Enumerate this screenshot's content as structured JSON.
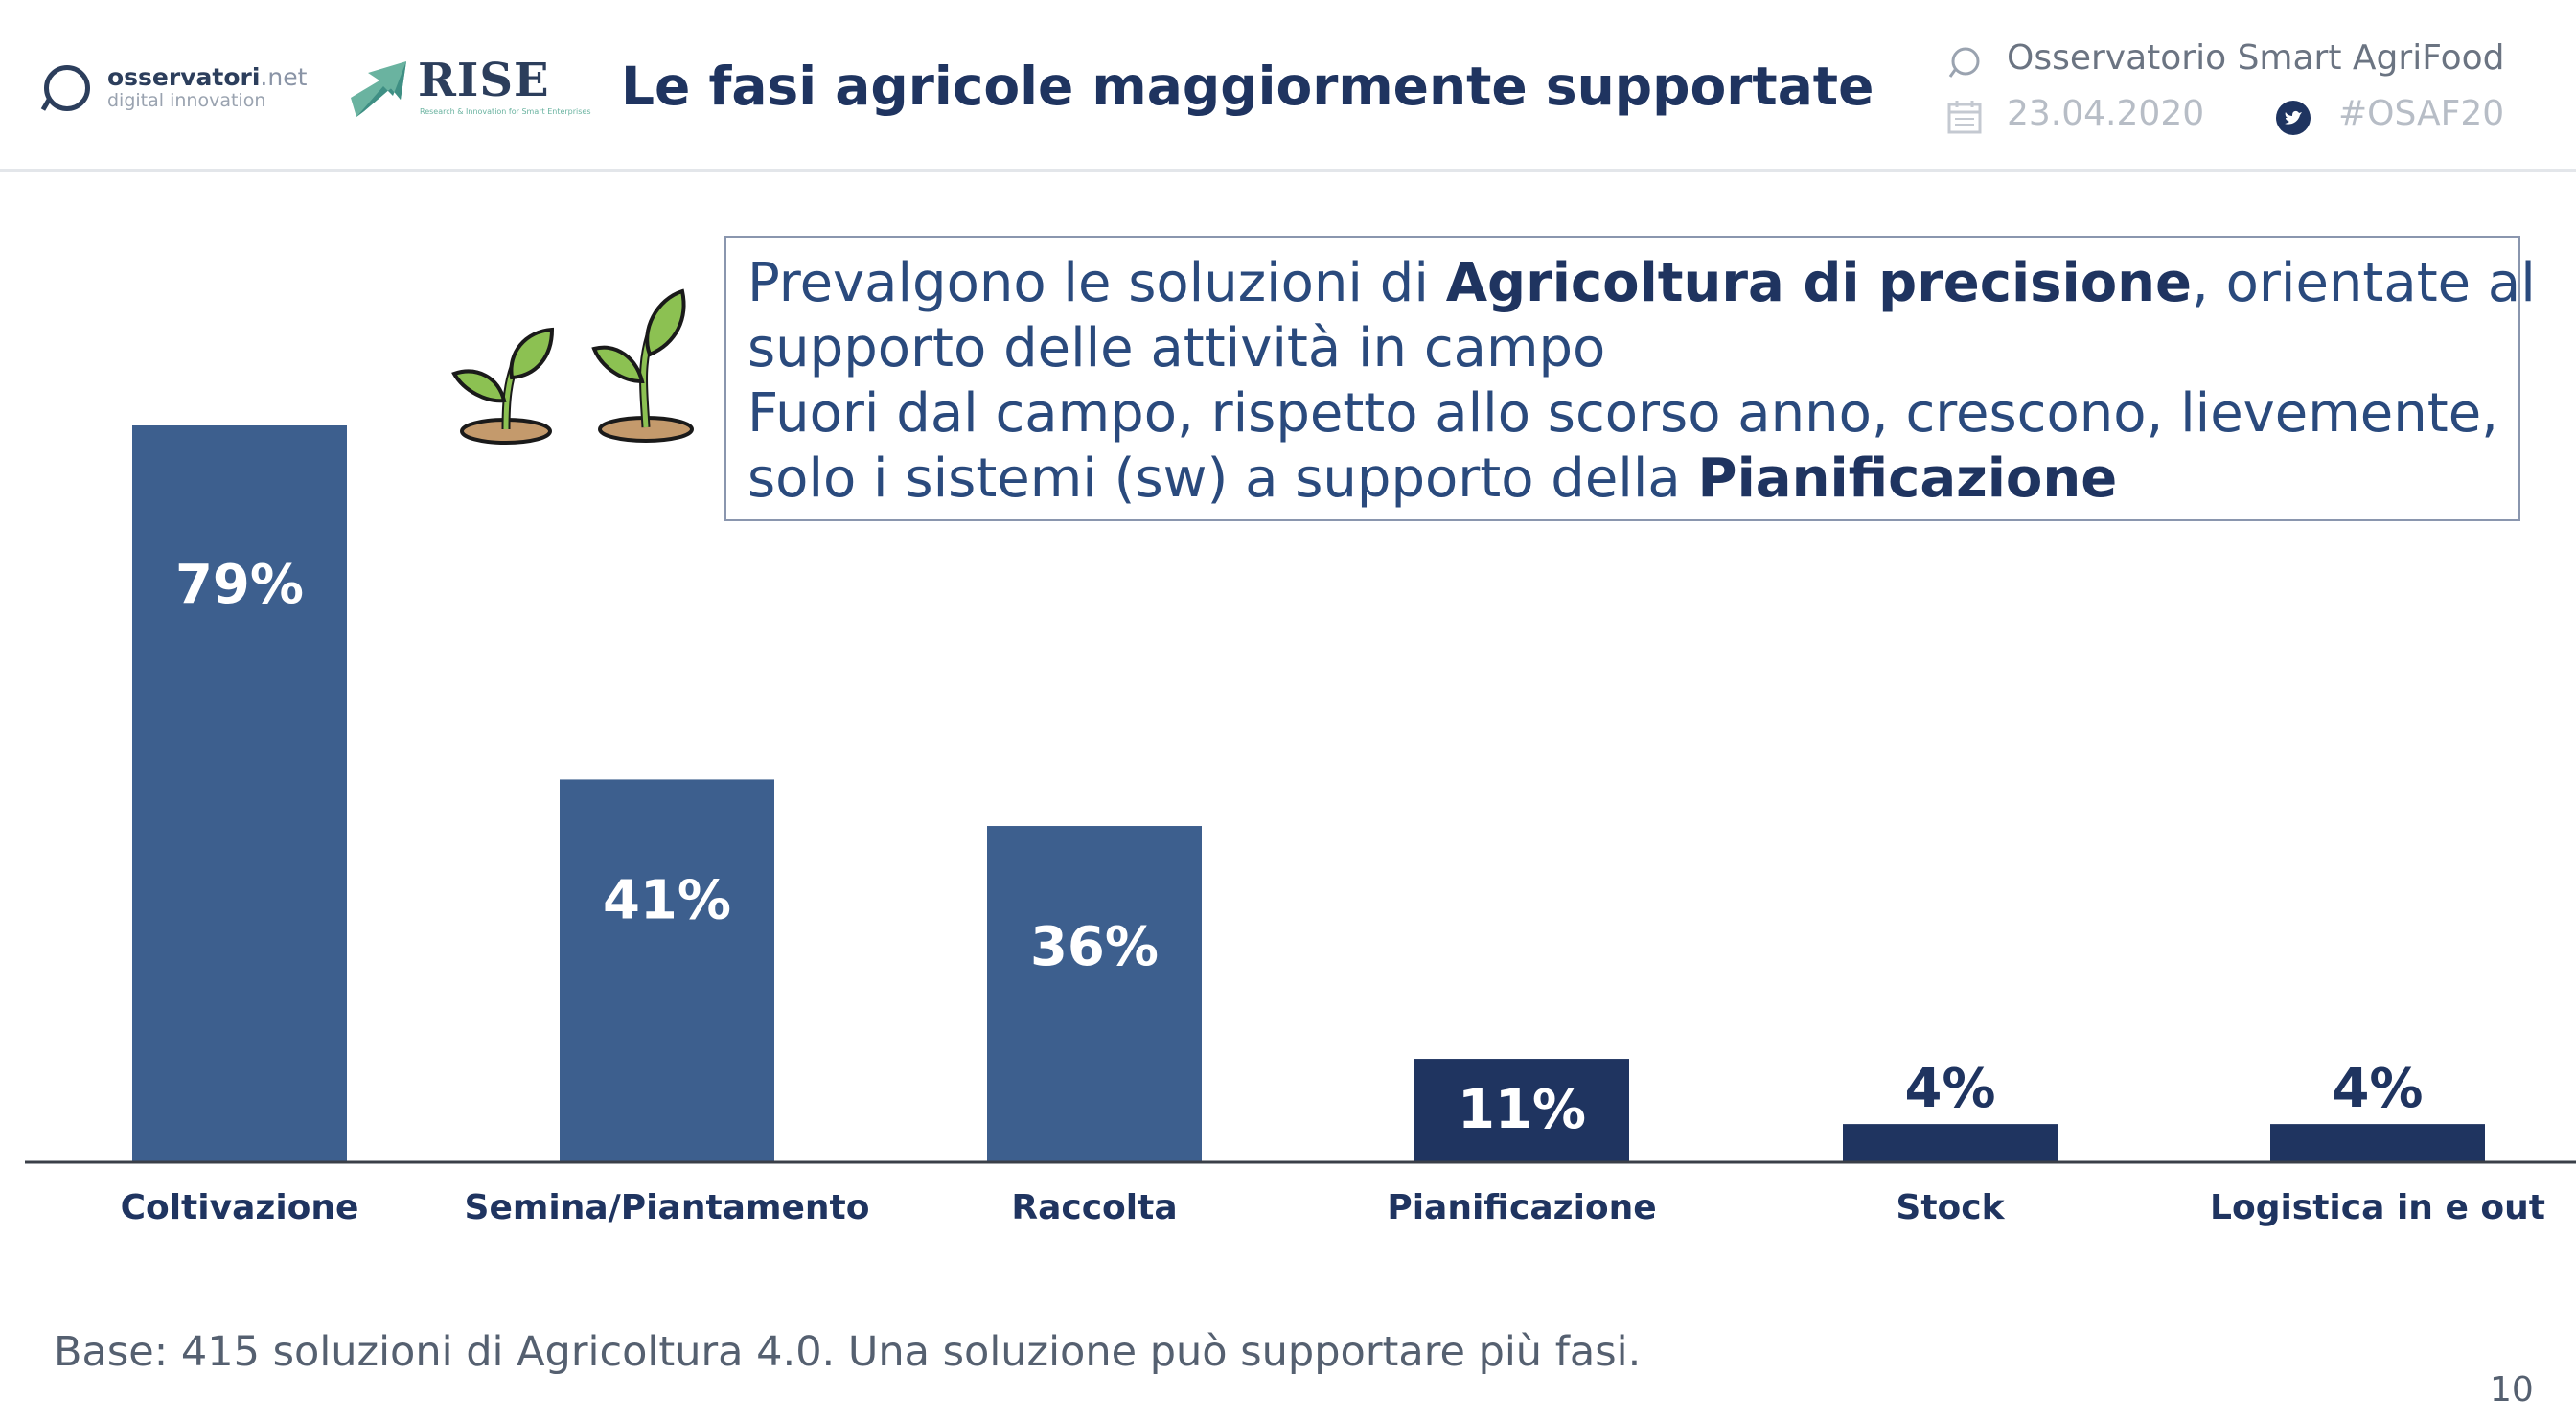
{
  "header": {
    "logo_oss_name": "osservatori",
    "logo_oss_net": ".net",
    "logo_oss_tagline": "digital innovation",
    "logo_rise": "RISE",
    "logo_rise_tagline": "Research & Innovation for Smart Enterprises",
    "title": "Le fasi agricole maggiormente supportate",
    "observatory": "Osservatorio Smart AgriFood",
    "date": "23.04.2020",
    "hashtag": "#OSAF20"
  },
  "callout": {
    "line1_pre": "Prevalgono le soluzioni di ",
    "line1_bold": "Agricoltura di precisione",
    "line1_post": ", orientate al",
    "line2": "supporto delle attività in campo",
    "line3": "Fuori dal campo, rispetto allo scorso anno, crescono, lievemente,",
    "line4_pre": "solo i sistemi (sw) a supporto della ",
    "line4_bold": "Pianificazione"
  },
  "footer": {
    "base": "Base: 415 soluzioni di Agricoltura 4.0. Una soluzione può supportare più fasi.",
    "page": "10"
  },
  "colors": {
    "bar_main": "#3d5f8e",
    "bar_dark": "#1f3460",
    "text_dark": "#1f3460"
  },
  "chart_data": {
    "type": "bar",
    "categories": [
      "Coltivazione",
      "Semina/Piantamento",
      "Raccolta",
      "Pianificazione",
      "Stock",
      "Logistica in e out"
    ],
    "values": [
      79,
      41,
      36,
      11,
      4,
      4
    ],
    "value_labels": [
      "79%",
      "41%",
      "36%",
      "11%",
      "4%",
      "4%"
    ],
    "bar_colors": [
      "#3d5f8e",
      "#3d5f8e",
      "#3d5f8e",
      "#1f3460",
      "#1f3460",
      "#1f3460"
    ],
    "ylim": [
      0,
      79
    ],
    "grid": false,
    "legend": "none"
  }
}
